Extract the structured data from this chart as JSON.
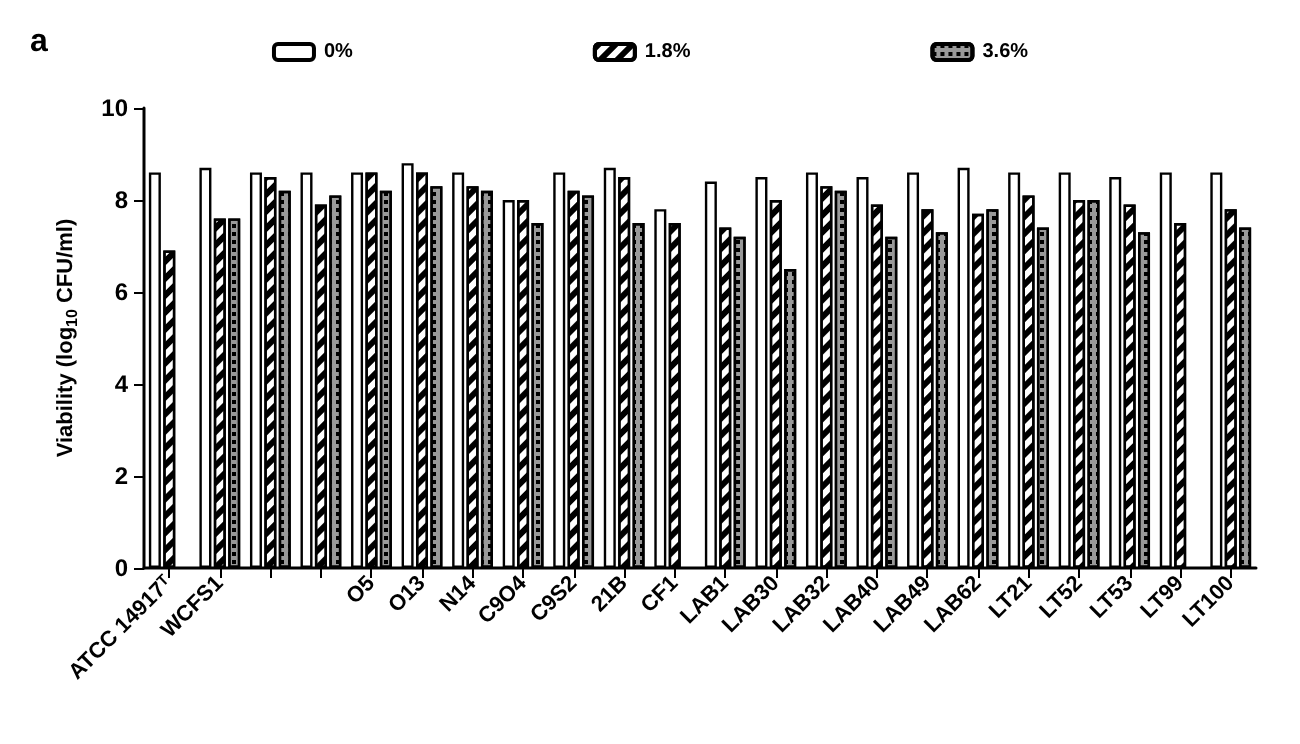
{
  "chart_data": {
    "type": "bar",
    "title": "a",
    "ylabel": "Viability (log$_{10}$ CFU/ml)",
    "categories": [
      "ATCC 14917ᵀ",
      "WCFS1",
      null,
      null,
      "O5",
      "O13",
      "N14",
      "C9O4",
      "C9S2",
      "21B",
      "CF1",
      "LAB1",
      "LAB30",
      "LAB32",
      "LAB40",
      "LAB49",
      "LAB62",
      "LT21",
      "LT52",
      "LT53",
      "LT99",
      "LT100"
    ],
    "series": [
      {
        "name": "0%",
        "color": "#ffffff",
        "values": [
          8.6,
          8.7,
          8.6,
          8.6,
          8.6,
          8.8,
          8.6,
          8.0,
          8.6,
          8.7,
          7.8,
          8.4,
          8.5,
          8.6,
          8.5,
          8.6,
          8.7,
          8.6,
          8.6,
          8.5,
          8.6,
          8.6
        ]
      },
      {
        "name": "1.8%",
        "color": "#ffffff",
        "values": [
          6.9,
          7.6,
          8.5,
          7.9,
          8.6,
          8.6,
          8.3,
          8.0,
          8.2,
          8.5,
          7.5,
          7.4,
          8.0,
          8.3,
          7.9,
          7.8,
          7.7,
          8.1,
          8.0,
          7.9,
          7.5,
          7.8
        ]
      },
      {
        "name": "3.6%",
        "color": "#999999",
        "values": [
          null,
          7.6,
          8.2,
          8.1,
          8.2,
          8.3,
          8.2,
          7.5,
          8.1,
          7.5,
          null,
          7.2,
          6.5,
          8.2,
          7.2,
          7.3,
          7.8,
          7.4,
          8.0,
          7.3,
          null,
          7.4
        ]
      }
    ],
    "ylim": [
      0,
      10
    ],
    "yticks": [
      0,
      2,
      4,
      6,
      8,
      10
    ],
    "grid": false,
    "legend": "top"
  }
}
